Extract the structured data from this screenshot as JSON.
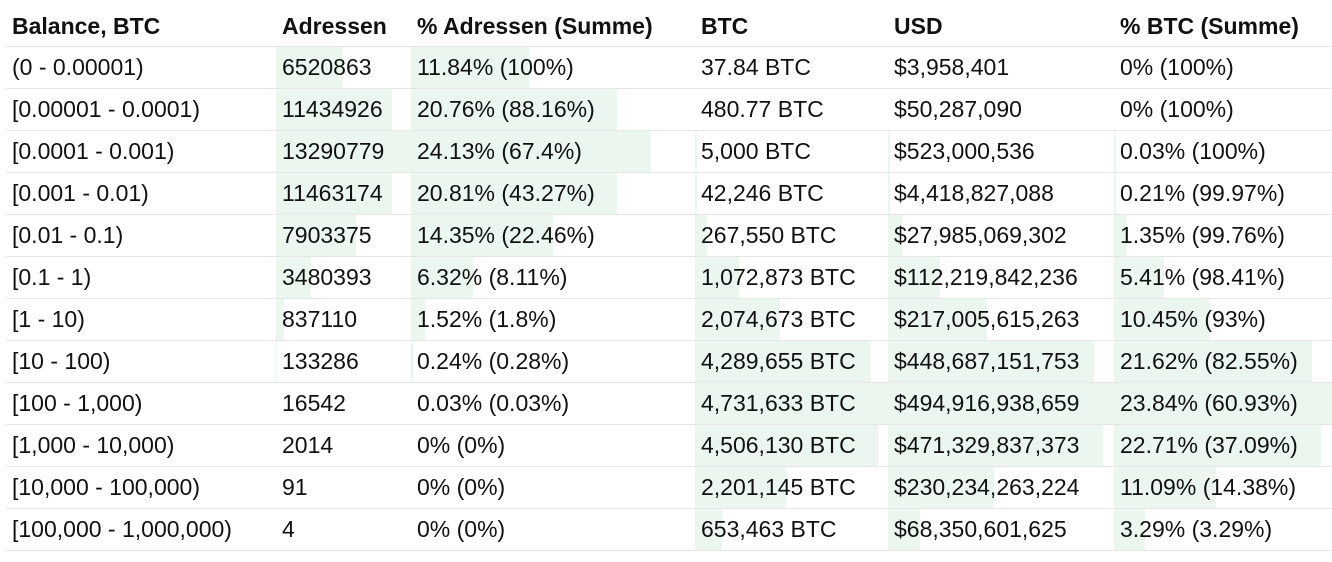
{
  "headers": [
    "Balance, BTC",
    "Adressen",
    "% Adressen (Summe)",
    "BTC",
    "USD",
    "% BTC (Summe)"
  ],
  "rows": [
    {
      "balance": "(0 - 0.00001)",
      "addresses": "6520863",
      "pct_addresses": "11.84% (100%)",
      "btc": "37.84 BTC",
      "usd": "$3,958,401",
      "pct_btc": "0% (100%)",
      "addr_fill": 0.49,
      "pctaddr_fill": 0.49,
      "btc_fill": 0.0,
      "usd_fill": 0.0,
      "pctbtc_fill": 0.0
    },
    {
      "balance": "[0.00001 - 0.0001)",
      "addresses": "11434926",
      "pct_addresses": "20.76% (88.16%)",
      "btc": "480.77 BTC",
      "usd": "$50,287,090",
      "pct_btc": "0% (100%)",
      "addr_fill": 0.86,
      "pctaddr_fill": 0.86,
      "btc_fill": 0.0,
      "usd_fill": 0.0,
      "pctbtc_fill": 0.0
    },
    {
      "balance": "[0.0001 - 0.001)",
      "addresses": "13290779",
      "pct_addresses": "24.13% (67.4%)",
      "btc": "5,000 BTC",
      "usd": "$523,000,536",
      "pct_btc": "0.03% (100%)",
      "addr_fill": 1.0,
      "pctaddr_fill": 1.0,
      "btc_fill": 0.01,
      "usd_fill": 0.01,
      "pctbtc_fill": 0.01
    },
    {
      "balance": "[0.001 - 0.01)",
      "addresses": "11463174",
      "pct_addresses": "20.81% (43.27%)",
      "btc": "42,246 BTC",
      "usd": "$4,418,827,088",
      "pct_btc": "0.21% (99.97%)",
      "addr_fill": 0.86,
      "pctaddr_fill": 0.86,
      "btc_fill": 0.01,
      "usd_fill": 0.01,
      "pctbtc_fill": 0.01
    },
    {
      "balance": "[0.01 - 0.1)",
      "addresses": "7903375",
      "pct_addresses": "14.35% (22.46%)",
      "btc": "267,550 BTC",
      "usd": "$27,985,069,302",
      "pct_btc": "1.35% (99.76%)",
      "addr_fill": 0.59,
      "pctaddr_fill": 0.59,
      "btc_fill": 0.06,
      "usd_fill": 0.06,
      "pctbtc_fill": 0.06
    },
    {
      "balance": "[0.1 - 1)",
      "addresses": "3480393",
      "pct_addresses": "6.32% (8.11%)",
      "btc": "1,072,873 BTC",
      "usd": "$112,219,842,236",
      "pct_btc": "5.41% (98.41%)",
      "addr_fill": 0.26,
      "pctaddr_fill": 0.26,
      "btc_fill": 0.23,
      "usd_fill": 0.23,
      "pctbtc_fill": 0.23
    },
    {
      "balance": "[1 - 10)",
      "addresses": "837110",
      "pct_addresses": "1.52% (1.8%)",
      "btc": "2,074,673 BTC",
      "usd": "$217,005,615,263",
      "pct_btc": "10.45% (93%)",
      "addr_fill": 0.06,
      "pctaddr_fill": 0.06,
      "btc_fill": 0.44,
      "usd_fill": 0.44,
      "pctbtc_fill": 0.44
    },
    {
      "balance": "[10 - 100)",
      "addresses": "133286",
      "pct_addresses": "0.24% (0.28%)",
      "btc": "4,289,655 BTC",
      "usd": "$448,687,151,753",
      "pct_btc": "21.62% (82.55%)",
      "addr_fill": 0.01,
      "pctaddr_fill": 0.01,
      "btc_fill": 0.91,
      "usd_fill": 0.91,
      "pctbtc_fill": 0.91
    },
    {
      "balance": "[100 - 1,000)",
      "addresses": "16542",
      "pct_addresses": "0.03% (0.03%)",
      "btc": "4,731,633 BTC",
      "usd": "$494,916,938,659",
      "pct_btc": "23.84% (60.93%)",
      "addr_fill": 0.0,
      "pctaddr_fill": 0.0,
      "btc_fill": 1.0,
      "usd_fill": 1.0,
      "pctbtc_fill": 1.0
    },
    {
      "balance": "[1,000 - 10,000)",
      "addresses": "2014",
      "pct_addresses": "0% (0%)",
      "btc": "4,506,130 BTC",
      "usd": "$471,329,837,373",
      "pct_btc": "22.71% (37.09%)",
      "addr_fill": 0.0,
      "pctaddr_fill": 0.0,
      "btc_fill": 0.95,
      "usd_fill": 0.95,
      "pctbtc_fill": 0.95
    },
    {
      "balance": "[10,000 - 100,000)",
      "addresses": "91",
      "pct_addresses": "0% (0%)",
      "btc": "2,201,145 BTC",
      "usd": "$230,234,263,224",
      "pct_btc": "11.09% (14.38%)",
      "addr_fill": 0.0,
      "pctaddr_fill": 0.0,
      "btc_fill": 0.47,
      "usd_fill": 0.47,
      "pctbtc_fill": 0.47
    },
    {
      "balance": "[100,000 - 1,000,000)",
      "addresses": "4",
      "pct_addresses": "0% (0%)",
      "btc": "653,463 BTC",
      "usd": "$68,350,601,625",
      "pct_btc": "3.29% (3.29%)",
      "addr_fill": 0.0,
      "pctaddr_fill": 0.0,
      "btc_fill": 0.14,
      "usd_fill": 0.14,
      "pctbtc_fill": 0.14
    }
  ]
}
